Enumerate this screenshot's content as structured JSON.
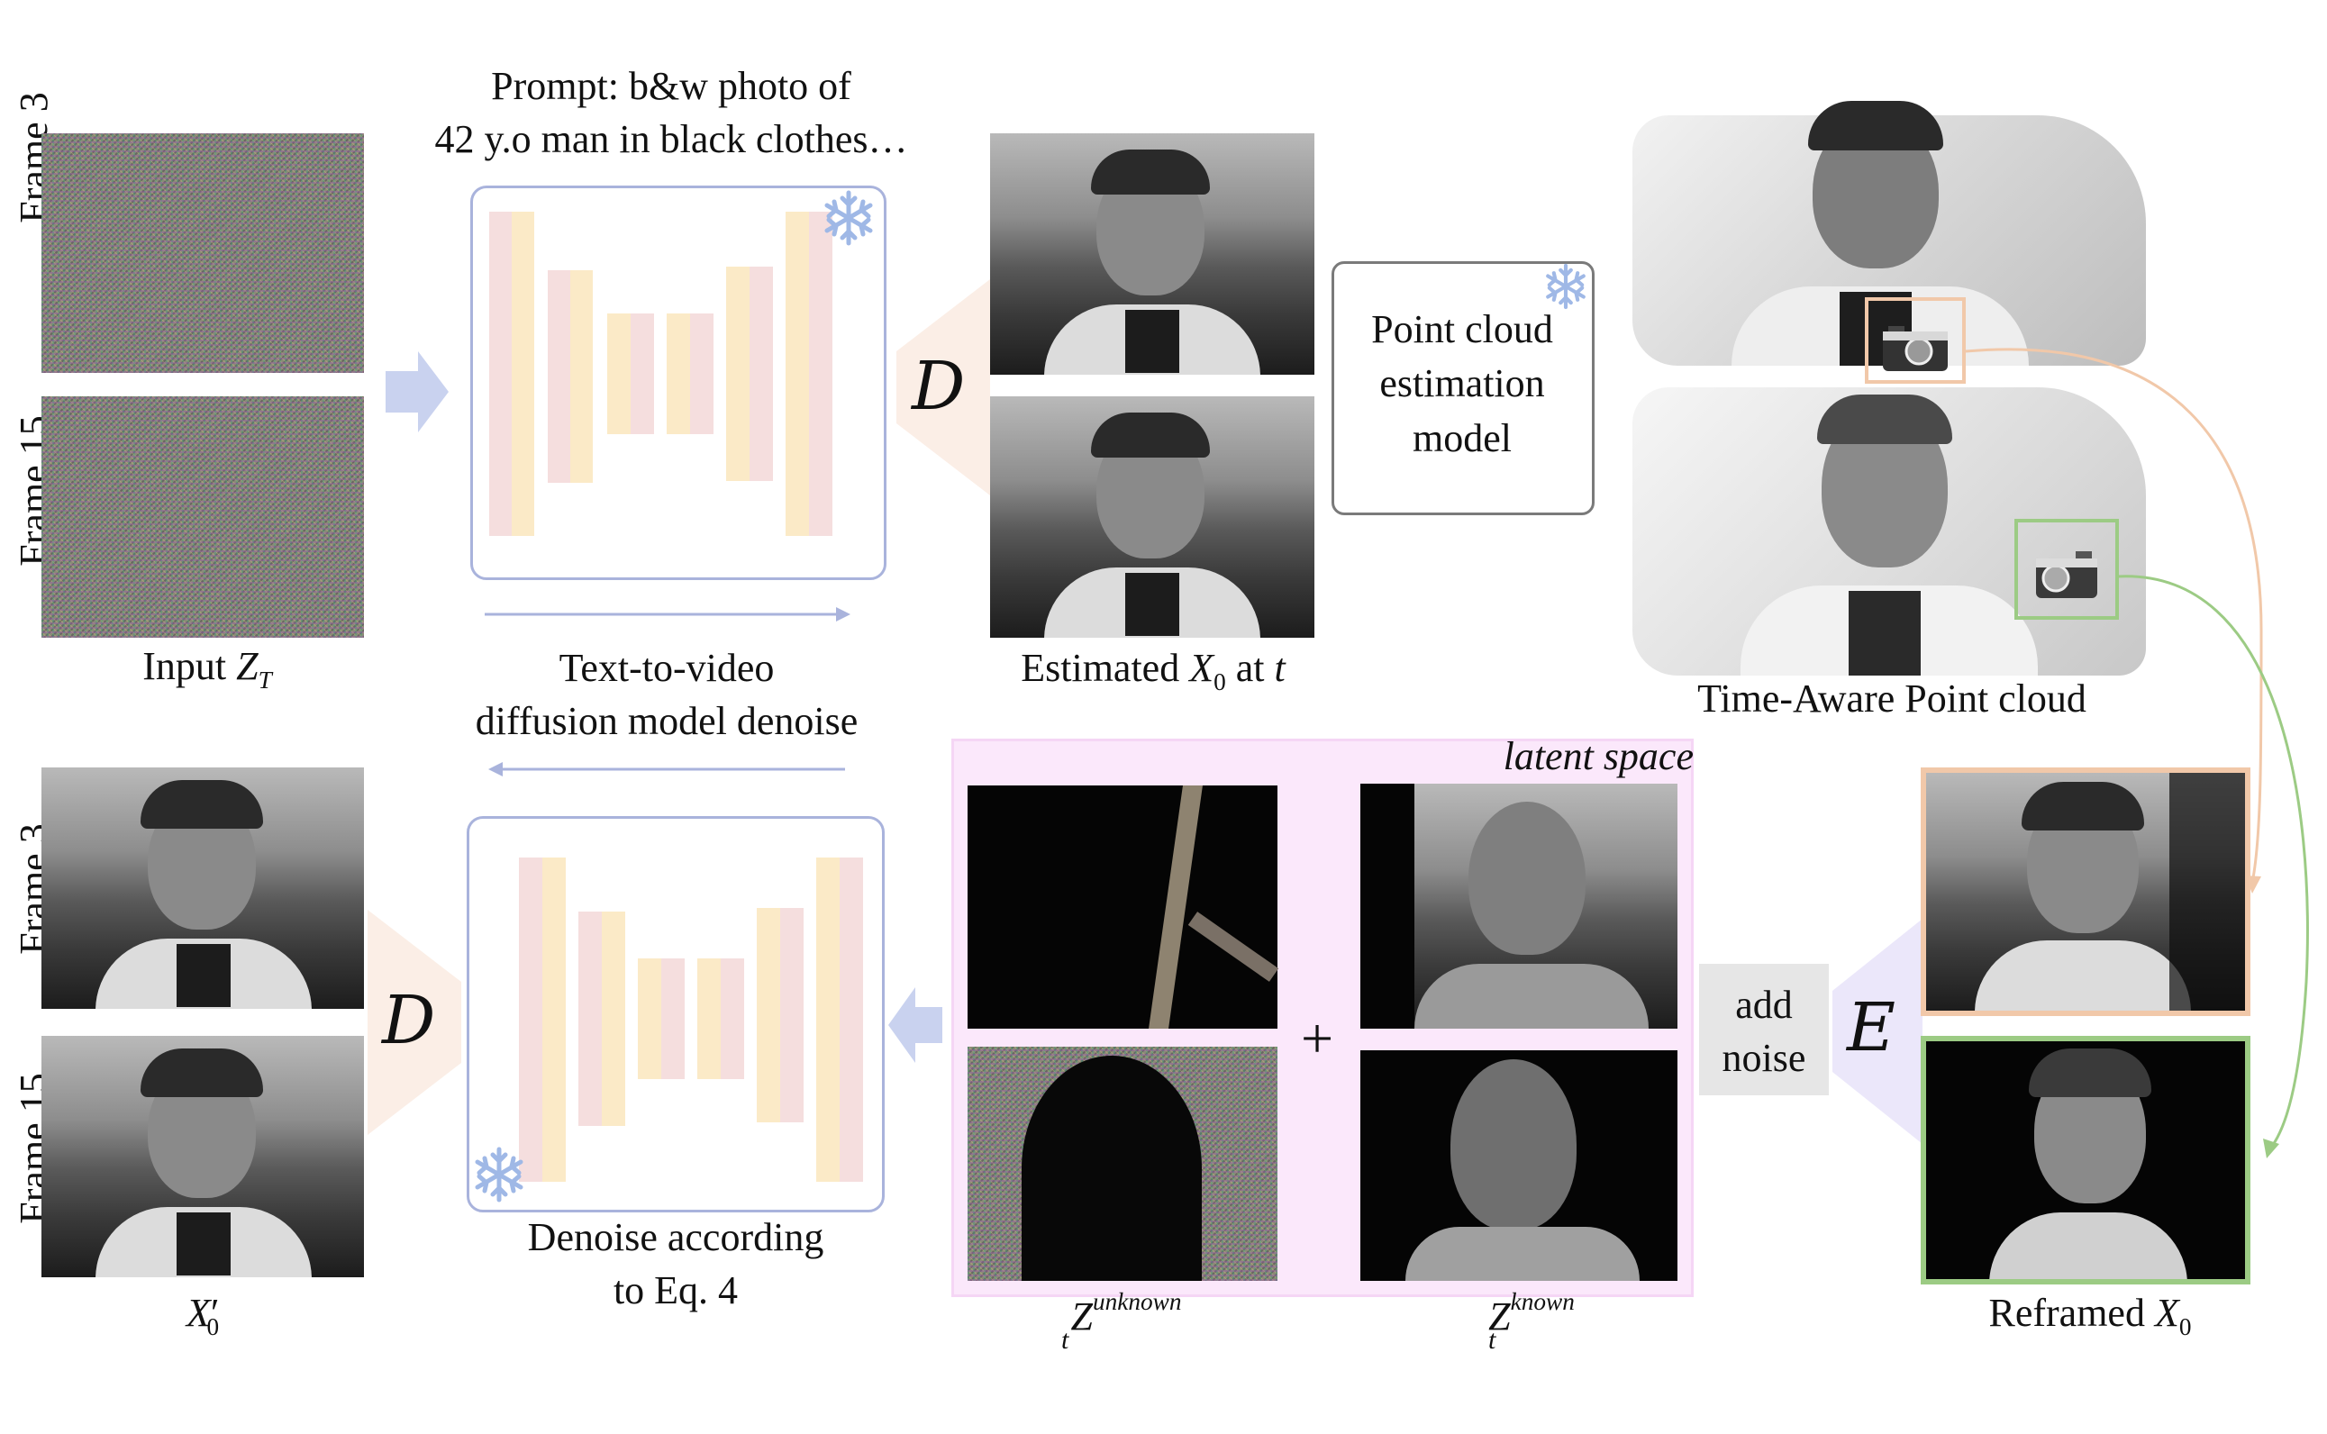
{
  "labels": {
    "prompt_line1": "Prompt: b&w photo of",
    "prompt_line2": "42 y.o man in black clothes…",
    "frame3": "Frame 3",
    "frame15": "Frame 15",
    "input_prefix": "Input ",
    "input_var": "Z",
    "input_sub": "T",
    "t2v_line1": "Text-to-video",
    "t2v_line2": "diffusion model denoise",
    "estimated_prefix": "Estimated ",
    "estimated_var": "X",
    "estimated_sub": "0",
    "estimated_suffix": " at ",
    "estimated_t": "t",
    "point_cloud_model_line1": "Point cloud",
    "point_cloud_model_line2": "estimation",
    "point_cloud_model_line3": "model",
    "time_aware": "Time-Aware Point cloud",
    "latent_space": "latent space",
    "add_noise_line1": "add",
    "add_noise_line2": "noise",
    "decoder_letter": "D",
    "encoder_letter": "E",
    "plus": "+",
    "denoise_line1": "Denoise according",
    "denoise_line2": "to Eq. 4",
    "x0prime_var": "X",
    "x0prime_sub": "0",
    "x0prime_prime": "′",
    "z_unknown_var": "Z",
    "z_unknown_sub": "t",
    "z_unknown_sup": "unknown",
    "z_known_var": "Z",
    "z_known_sub": "t",
    "z_known_sup": "known",
    "reframed_prefix": "Reframed ",
    "reframed_var": "X",
    "reframed_sub": "0"
  },
  "colors": {
    "unet_border": "#a9b3dc",
    "bar_yellow": "#fbeac7",
    "bar_pink": "#f5dede",
    "flow_arrow": "#c9d2ef",
    "decoder_fan": "#fbeee6",
    "encoder_fan": "#ebe7fa",
    "latent_bg": "#fbe8fb",
    "orange_frame": "#f1c8a9",
    "green_frame": "#9ccb84",
    "snowflake": "#9fb8e6"
  },
  "icons": [
    "snowflake-icon",
    "camera-icon",
    "right-arrow-icon",
    "left-arrow-icon"
  ]
}
